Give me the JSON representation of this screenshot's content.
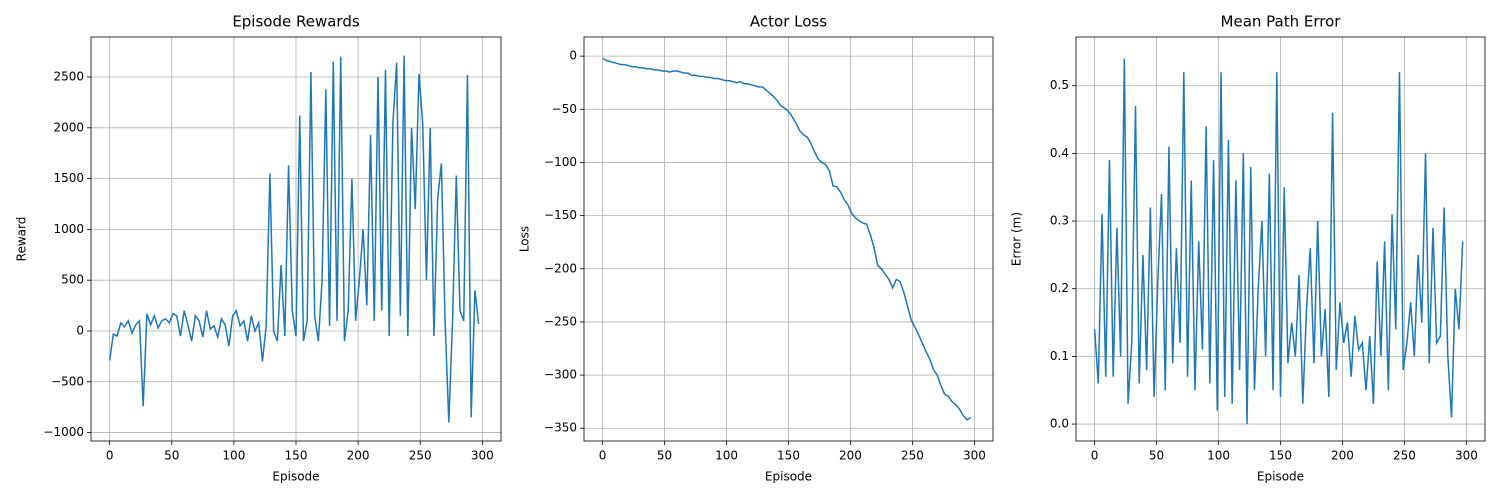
{
  "chart_data": [
    {
      "type": "line",
      "title": "Episode Rewards",
      "x_label": "Episode",
      "y_label": "Reward",
      "grid": true,
      "xlim": [
        -15,
        315
      ],
      "ylim": [
        -1083,
        2894
      ],
      "xticks": [
        0,
        50,
        100,
        150,
        200,
        250,
        300
      ],
      "yticks": [
        {
          "value": -1000,
          "label": "−1000"
        },
        {
          "value": -500,
          "label": "−500"
        },
        0,
        500,
        1000,
        1500,
        2000,
        2500
      ],
      "x": [
        0,
        3,
        6,
        9,
        12,
        15,
        18,
        21,
        24,
        27,
        30,
        33,
        36,
        39,
        42,
        45,
        48,
        51,
        54,
        57,
        60,
        63,
        66,
        69,
        72,
        75,
        78,
        81,
        84,
        87,
        90,
        93,
        96,
        99,
        102,
        105,
        108,
        111,
        114,
        117,
        120,
        123,
        126,
        129,
        132,
        135,
        138,
        141,
        144,
        147,
        150,
        153,
        156,
        159,
        162,
        165,
        168,
        171,
        174,
        177,
        180,
        183,
        186,
        189,
        192,
        195,
        198,
        201,
        204,
        207,
        210,
        213,
        216,
        219,
        222,
        225,
        228,
        231,
        234,
        237,
        240,
        243,
        246,
        249,
        252,
        255,
        258,
        261,
        264,
        267,
        270,
        273,
        276,
        279,
        282,
        285,
        288,
        291,
        294,
        297
      ],
      "series": [
        {
          "color": "#1f77b4",
          "values": [
            -290,
            -30,
            -50,
            80,
            40,
            100,
            -20,
            60,
            100,
            -740,
            170,
            60,
            150,
            30,
            100,
            120,
            80,
            170,
            150,
            -50,
            200,
            60,
            -100,
            150,
            100,
            -60,
            200,
            20,
            50,
            -60,
            120,
            60,
            -150,
            150,
            200,
            50,
            100,
            -100,
            150,
            0,
            80,
            -300,
            50,
            1550,
            0,
            -100,
            650,
            -50,
            1630,
            200,
            -50,
            2120,
            -100,
            100,
            2550,
            150,
            -100,
            500,
            2380,
            50,
            2650,
            100,
            2700,
            -100,
            200,
            1500,
            100,
            500,
            1000,
            250,
            1930,
            100,
            2500,
            200,
            2570,
            -50,
            2050,
            2640,
            150,
            2710,
            -50,
            2000,
            1200,
            2530,
            2040,
            500,
            2000,
            -50,
            1300,
            1650,
            100,
            -900,
            100,
            1530,
            200,
            100,
            2520,
            -850,
            400,
            70
          ]
        }
      ]
    },
    {
      "type": "line",
      "title": "Actor Loss",
      "x_label": "Episode",
      "y_label": "Loss",
      "grid": true,
      "xlim": [
        -15,
        315
      ],
      "ylim": [
        -362,
        18
      ],
      "xticks": [
        0,
        50,
        100,
        150,
        200,
        250,
        300
      ],
      "yticks": [
        {
          "value": -350,
          "label": "−350"
        },
        {
          "value": -300,
          "label": "−300"
        },
        {
          "value": -250,
          "label": "−250"
        },
        {
          "value": -200,
          "label": "−200"
        },
        {
          "value": -150,
          "label": "−150"
        },
        {
          "value": -100,
          "label": "−100"
        },
        {
          "value": -50,
          "label": "−50"
        },
        0
      ],
      "x": [
        0,
        3,
        6,
        9,
        12,
        15,
        18,
        21,
        24,
        27,
        30,
        33,
        36,
        39,
        42,
        45,
        48,
        51,
        54,
        57,
        60,
        63,
        66,
        69,
        72,
        75,
        78,
        81,
        84,
        87,
        90,
        93,
        96,
        99,
        102,
        105,
        108,
        111,
        114,
        117,
        120,
        123,
        126,
        129,
        132,
        135,
        138,
        141,
        144,
        147,
        150,
        153,
        156,
        159,
        162,
        165,
        168,
        171,
        174,
        177,
        180,
        183,
        186,
        189,
        192,
        195,
        198,
        201,
        204,
        207,
        210,
        213,
        216,
        219,
        222,
        225,
        228,
        231,
        234,
        237,
        240,
        243,
        246,
        249,
        252,
        255,
        258,
        261,
        264,
        267,
        270,
        273,
        276,
        279,
        282,
        285,
        288,
        291,
        294,
        297
      ],
      "series": [
        {
          "color": "#1f77b4",
          "values": [
            -2,
            -4,
            -5,
            -6,
            -7,
            -8,
            -8,
            -9,
            -10,
            -10,
            -11,
            -11,
            -12,
            -12,
            -13,
            -13,
            -14,
            -14,
            -15,
            -14,
            -14,
            -15,
            -16,
            -16,
            -18,
            -18,
            -19,
            -19,
            -20,
            -20,
            -21,
            -21,
            -22,
            -23,
            -23,
            -24,
            -25,
            -24,
            -26,
            -26,
            -27,
            -28,
            -29,
            -29,
            -32,
            -35,
            -38,
            -42,
            -47,
            -49,
            -52,
            -57,
            -63,
            -70,
            -74,
            -76,
            -82,
            -90,
            -97,
            -100,
            -102,
            -108,
            -122,
            -123,
            -128,
            -135,
            -140,
            -148,
            -152,
            -155,
            -157,
            -158,
            -168,
            -180,
            -197,
            -200,
            -205,
            -210,
            -218,
            -210,
            -212,
            -222,
            -235,
            -248,
            -255,
            -262,
            -270,
            -278,
            -285,
            -295,
            -300,
            -310,
            -318,
            -320,
            -325,
            -328,
            -332,
            -338,
            -342,
            -340
          ]
        }
      ]
    },
    {
      "type": "line",
      "title": "Mean Path Error",
      "x_label": "Episode",
      "y_label": "Error (m)",
      "grid": true,
      "xlim": [
        -15,
        315
      ],
      "ylim": [
        -0.025,
        0.572
      ],
      "xticks": [
        0,
        50,
        100,
        150,
        200,
        250,
        300
      ],
      "yticks": [
        {
          "value": 0,
          "label": "0.0"
        },
        0.1,
        0.2,
        0.3,
        0.4,
        0.5
      ],
      "x": [
        0,
        3,
        6,
        9,
        12,
        15,
        18,
        21,
        24,
        27,
        30,
        33,
        36,
        39,
        42,
        45,
        48,
        51,
        54,
        57,
        60,
        63,
        66,
        69,
        72,
        75,
        78,
        81,
        84,
        87,
        90,
        93,
        96,
        99,
        102,
        105,
        108,
        111,
        114,
        117,
        120,
        123,
        126,
        129,
        132,
        135,
        138,
        141,
        144,
        147,
        150,
        153,
        156,
        159,
        162,
        165,
        168,
        171,
        174,
        177,
        180,
        183,
        186,
        189,
        192,
        195,
        198,
        201,
        204,
        207,
        210,
        213,
        216,
        219,
        222,
        225,
        228,
        231,
        234,
        237,
        240,
        243,
        246,
        249,
        252,
        255,
        258,
        261,
        264,
        267,
        270,
        273,
        276,
        279,
        282,
        285,
        288,
        291,
        294,
        297
      ],
      "series": [
        {
          "color": "#1f77b4",
          "values": [
            0.14,
            0.06,
            0.31,
            0.07,
            0.39,
            0.07,
            0.29,
            0.1,
            0.54,
            0.03,
            0.12,
            0.47,
            0.06,
            0.25,
            0.08,
            0.32,
            0.04,
            0.21,
            0.34,
            0.05,
            0.41,
            0.09,
            0.26,
            0.12,
            0.52,
            0.07,
            0.36,
            0.05,
            0.27,
            0.11,
            0.44,
            0.06,
            0.39,
            0.02,
            0.52,
            0.04,
            0.42,
            0.03,
            0.36,
            0.08,
            0.4,
            0.0,
            0.38,
            0.05,
            0.2,
            0.3,
            0.1,
            0.37,
            0.05,
            0.52,
            0.04,
            0.35,
            0.09,
            0.15,
            0.1,
            0.22,
            0.03,
            0.17,
            0.26,
            0.09,
            0.3,
            0.1,
            0.17,
            0.04,
            0.46,
            0.08,
            0.18,
            0.12,
            0.15,
            0.07,
            0.16,
            0.11,
            0.12,
            0.05,
            0.13,
            0.03,
            0.24,
            0.1,
            0.27,
            0.05,
            0.31,
            0.14,
            0.52,
            0.08,
            0.12,
            0.18,
            0.1,
            0.25,
            0.15,
            0.4,
            0.09,
            0.29,
            0.12,
            0.13,
            0.32,
            0.1,
            0.01,
            0.2,
            0.14,
            0.27
          ]
        }
      ]
    }
  ]
}
